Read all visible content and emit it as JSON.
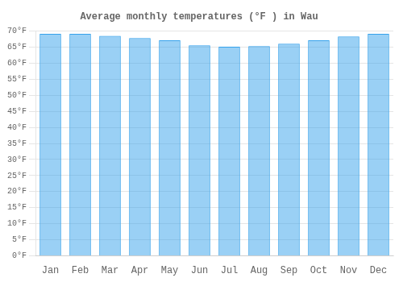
{
  "chart_data": {
    "type": "bar",
    "title": "Average monthly temperatures (°F ) in Wau",
    "categories": [
      "Jan",
      "Feb",
      "Mar",
      "Apr",
      "May",
      "Jun",
      "Jul",
      "Aug",
      "Sep",
      "Oct",
      "Nov",
      "Dec"
    ],
    "values": [
      69.1,
      69.1,
      68.5,
      67.8,
      67.1,
      65.5,
      65.1,
      65.3,
      66.0,
      67.1,
      68.3,
      69.1
    ],
    "ylim": [
      0,
      70
    ],
    "yticks": [
      {
        "value": 0,
        "label": "0°F"
      },
      {
        "value": 5,
        "label": "5°F"
      },
      {
        "value": 10,
        "label": "10°F"
      },
      {
        "value": 15,
        "label": "15°F"
      },
      {
        "value": 20,
        "label": "20°F"
      },
      {
        "value": 25,
        "label": "25°F"
      },
      {
        "value": 30,
        "label": "30°F"
      },
      {
        "value": 35,
        "label": "35°F"
      },
      {
        "value": 40,
        "label": "40°F"
      },
      {
        "value": 45,
        "label": "45°F"
      },
      {
        "value": 50,
        "label": "50°F"
      },
      {
        "value": 55,
        "label": "55°F"
      },
      {
        "value": 60,
        "label": "60°F"
      },
      {
        "value": 65,
        "label": "65°F"
      },
      {
        "value": 70,
        "label": "70°F"
      }
    ],
    "grid": true
  }
}
